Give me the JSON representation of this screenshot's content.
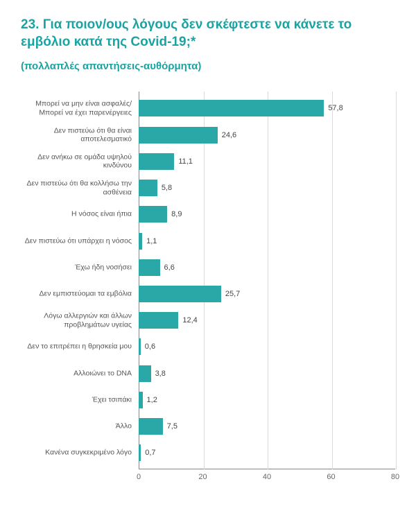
{
  "title": "23. Για ποιον/ους λόγους δεν σκέφτεστε να κάνετε το εμβόλιο κατά της Covid-19;*",
  "subtitle": "(πολλαπλές απαντήσεις-αυθόρμητα)",
  "chart": {
    "type": "bar-horizontal",
    "title_color": "#1aa3a3",
    "bar_color": "#2aa7a7",
    "background_color": "#ffffff",
    "grid_color": "#d9d9d9",
    "axis_color": "#888888",
    "label_fontsize": 10.5,
    "value_fontsize": 11,
    "xlim": [
      0,
      80
    ],
    "xtick_step": 20,
    "xticks": [
      "0",
      "20",
      "40",
      "60",
      "80"
    ],
    "categories": [
      "Μπορεί να μην είναι ασφαλές/ Μπορεί να έχει παρενέργειες",
      "Δεν πιστεύω ότι θα είναι αποτελεσματικό",
      "Δεν ανήκω σε ομάδα υψηλού κινδύνου",
      "Δεν πιστεύω ότι θα κολλήσω την ασθένεια",
      "Η νόσος είναι ήπια",
      "Δεν πιστεύω ότι υπάρχει η νόσος",
      "Έχω ήδη νοσήσει",
      "Δεν εμπιστεύομαι τα εμβόλια",
      "Λόγω αλλεργιών και άλλων προβλημάτων υγείας",
      "Δεν το επιτρέπει η θρησκεία μου",
      "Αλλοιώνει το DNA",
      "Έχει τσιπάκι",
      "Άλλο",
      "Κανένα συγκεκριμένο λόγο"
    ],
    "values": [
      57.8,
      24.6,
      11.1,
      5.8,
      8.9,
      1.1,
      6.6,
      25.7,
      12.4,
      0.6,
      3.8,
      1.2,
      7.5,
      0.7
    ],
    "value_labels": [
      "57,8",
      "24,6",
      "11,1",
      "5,8",
      "8,9",
      "1,1",
      "6,6",
      "25,7",
      "12,4",
      "0,6",
      "3,8",
      "1,2",
      "7,5",
      "0,7"
    ]
  }
}
